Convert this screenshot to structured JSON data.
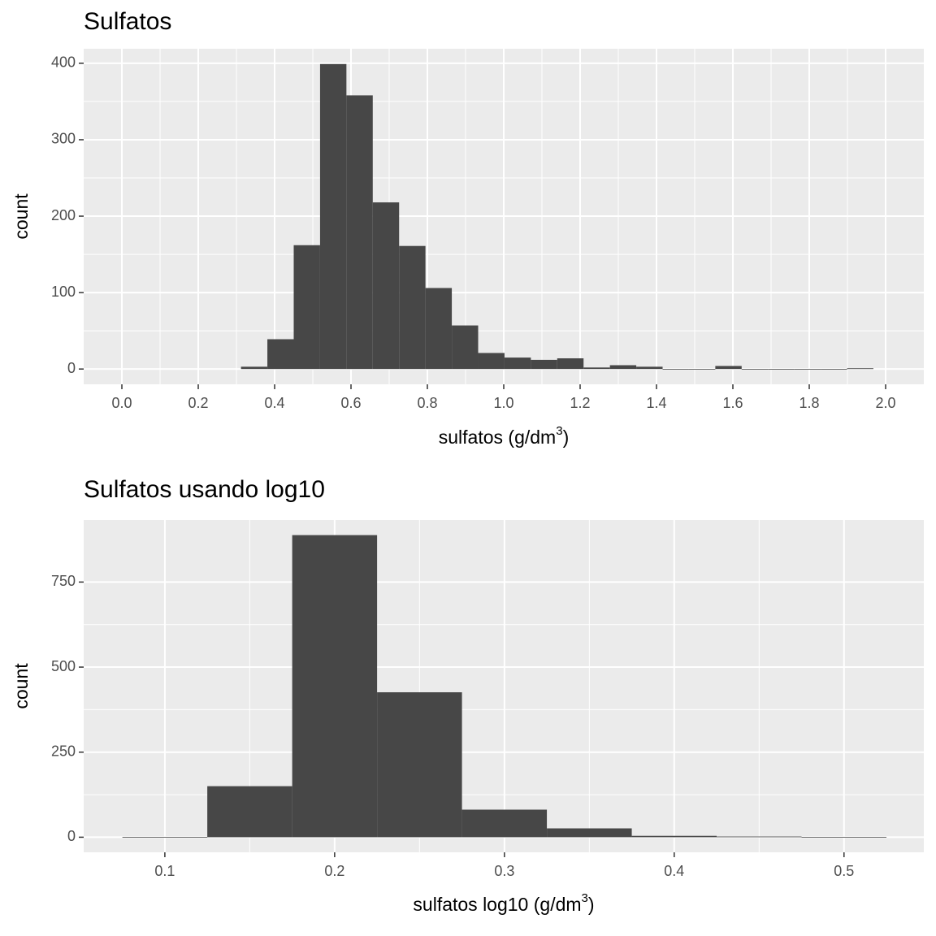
{
  "chart_data": [
    {
      "type": "histogram",
      "title": "Sulfatos",
      "x_label": [
        "sulfatos (g/dm",
        "3",
        ")"
      ],
      "y_label": "count",
      "bins": [
        0.312,
        0.381,
        0.45,
        0.519,
        0.588,
        0.657,
        0.726,
        0.795,
        0.864,
        0.933,
        1.002,
        1.071,
        1.14,
        1.209,
        1.278,
        1.347,
        1.416,
        1.485,
        1.554,
        1.623,
        1.692,
        1.761,
        1.83,
        1.899,
        1.968
      ],
      "values": [
        3,
        39,
        162,
        399,
        358,
        218,
        161,
        106,
        57,
        21,
        15,
        12,
        14,
        2,
        5,
        3,
        0,
        0,
        4,
        0,
        0,
        0,
        0,
        1
      ],
      "color": "#474747",
      "xlim": [
        -0.1,
        2.1
      ],
      "xticks": [
        {
          "value": 0,
          "label": "0.0"
        },
        0.2,
        0.4,
        0.6,
        0.8,
        {
          "value": 1,
          "label": "1.0"
        },
        1.2,
        1.4,
        1.6,
        1.8,
        {
          "value": 2,
          "label": "2.0"
        }
      ],
      "ylim": [
        -20,
        419
      ],
      "yticks": [
        0,
        100,
        200,
        300,
        400
      ],
      "grid": true
    },
    {
      "type": "histogram",
      "title": "Sulfatos usando log10",
      "x_label": [
        "sulfatos log10 (g/dm",
        "3",
        ")"
      ],
      "y_label": "count",
      "bins": [
        0.075,
        0.125,
        0.175,
        0.225,
        0.275,
        0.325,
        0.375,
        0.425,
        0.475,
        0.525
      ],
      "values": [
        1,
        150,
        888,
        426,
        81,
        26,
        4,
        2,
        1
      ],
      "color": "#474747",
      "xlim": [
        0.0522,
        0.547
      ],
      "xticks": [
        0.1,
        0.2,
        0.3,
        0.4,
        0.5
      ],
      "ylim": [
        -44.4,
        932.4
      ],
      "yticks": [
        0,
        250,
        500,
        750
      ],
      "grid": true
    }
  ]
}
